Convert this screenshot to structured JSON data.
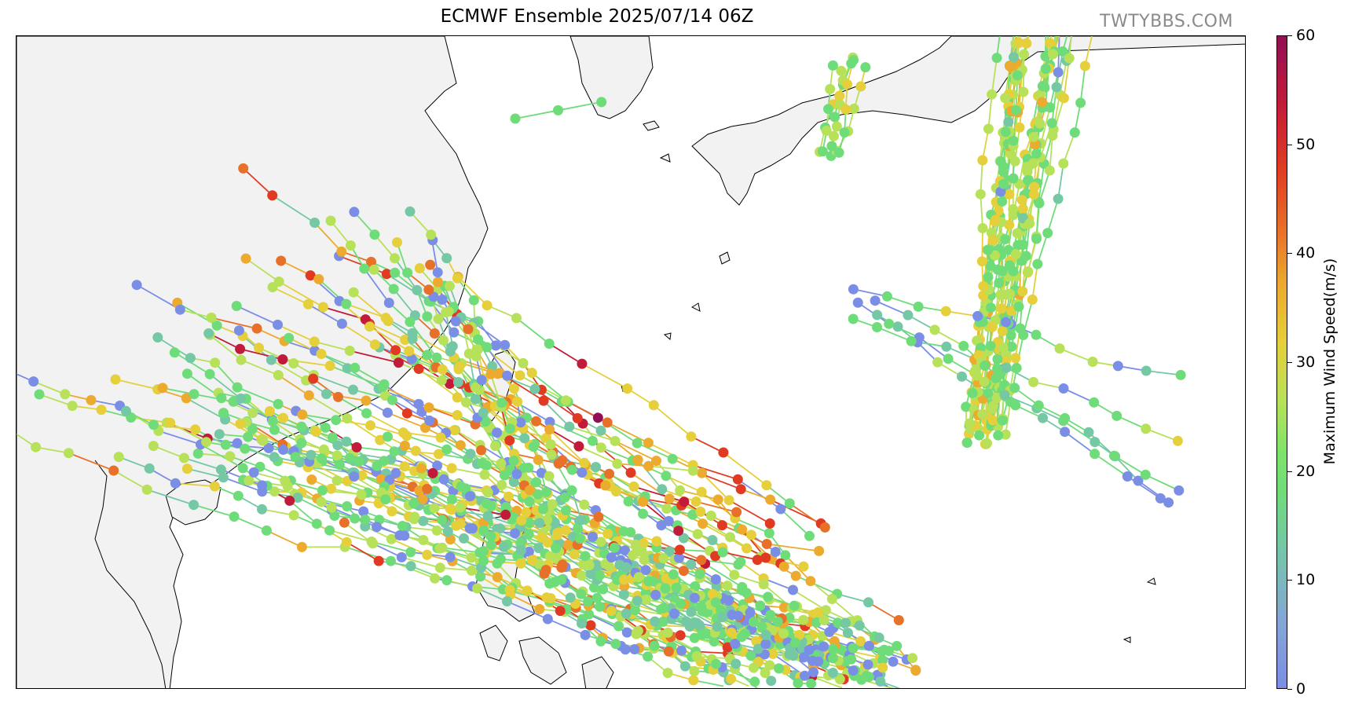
{
  "title": "ECMWF Ensemble 2025/07/14 06Z",
  "watermark": "TWTYBBS.COM",
  "colorbar": {
    "label": "Maximum Wind Speed(m/s)",
    "min": 0,
    "max": 60,
    "ticks": [
      "0",
      "10",
      "20",
      "30",
      "40",
      "50",
      "60"
    ],
    "colors": [
      "#7b8ee6",
      "#74c8a4",
      "#6fdc7a",
      "#b7e159",
      "#e5cf3a",
      "#ecaa2e",
      "#e8712a",
      "#e03a22",
      "#c21a3a",
      "#911055"
    ]
  },
  "map": {
    "land_color": "#f2f2f2",
    "coast_color": "#000000"
  }
}
